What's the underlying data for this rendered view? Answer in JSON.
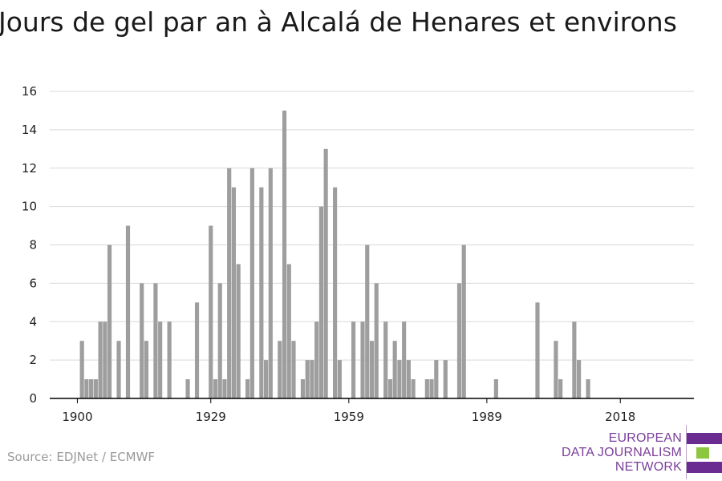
{
  "title": "Jours de gel par an à Alcalá de Henares et environs",
  "source": "Source: EDJNet / ECMWF",
  "logo": {
    "line1": "EUROPEAN",
    "line2": "DATA JOURNALISM",
    "line3": "NETWORK"
  },
  "colors": {
    "bar": "#9e9e9e",
    "grid": "#d9d9d9",
    "axis": "#000000",
    "logo_purple": "#6b2c91",
    "logo_green": "#8dc63f"
  },
  "chart_data": {
    "type": "bar",
    "x_tick_labels": [
      "1900",
      "1929",
      "1959",
      "1989",
      "2018"
    ],
    "x_ticks": [
      1900,
      1929,
      1959,
      1989,
      2018
    ],
    "y_ticks": [
      0,
      2,
      4,
      6,
      8,
      10,
      12,
      14,
      16
    ],
    "ylim": [
      0,
      16
    ],
    "xlim": [
      1894,
      2034
    ],
    "grid": true,
    "years": [
      1900,
      1901,
      1902,
      1903,
      1904,
      1905,
      1906,
      1907,
      1908,
      1909,
      1910,
      1911,
      1912,
      1913,
      1914,
      1915,
      1916,
      1917,
      1918,
      1919,
      1920,
      1921,
      1922,
      1923,
      1924,
      1925,
      1926,
      1927,
      1928,
      1929,
      1930,
      1931,
      1932,
      1933,
      1934,
      1935,
      1936,
      1937,
      1938,
      1939,
      1940,
      1941,
      1942,
      1943,
      1944,
      1945,
      1946,
      1947,
      1948,
      1949,
      1950,
      1951,
      1952,
      1953,
      1954,
      1955,
      1956,
      1957,
      1958,
      1959,
      1960,
      1961,
      1962,
      1963,
      1964,
      1965,
      1966,
      1967,
      1968,
      1969,
      1970,
      1971,
      1972,
      1973,
      1974,
      1975,
      1976,
      1977,
      1978,
      1979,
      1980,
      1981,
      1982,
      1983,
      1984,
      1985,
      1986,
      1987,
      1988,
      1989,
      1990,
      1991,
      1992,
      1993,
      1994,
      1995,
      1996,
      1997,
      1998,
      1999,
      2000,
      2001,
      2002,
      2003,
      2004,
      2005,
      2006,
      2007,
      2008,
      2009,
      2010,
      2011,
      2012,
      2013,
      2014,
      2015,
      2016,
      2017,
      2018,
      2019,
      2020
    ],
    "values": [
      0,
      3,
      1,
      1,
      1,
      4,
      4,
      8,
      0,
      3,
      0,
      9,
      0,
      0,
      6,
      3,
      0,
      6,
      4,
      0,
      4,
      0,
      0,
      0,
      1,
      0,
      5,
      0,
      0,
      9,
      1,
      6,
      1,
      12,
      11,
      7,
      0,
      1,
      12,
      0,
      11,
      2,
      12,
      0,
      3,
      15,
      7,
      3,
      0,
      1,
      2,
      2,
      4,
      10,
      13,
      0,
      11,
      2,
      0,
      0,
      4,
      0,
      4,
      8,
      3,
      6,
      0,
      4,
      1,
      3,
      2,
      4,
      2,
      1,
      0,
      0,
      1,
      1,
      2,
      0,
      2,
      0,
      0,
      6,
      8,
      0,
      0,
      0,
      0,
      0,
      0,
      1,
      0,
      0,
      0,
      0,
      0,
      0,
      0,
      0,
      5,
      0,
      0,
      0,
      3,
      1,
      0,
      0,
      4,
      2,
      0,
      1,
      0,
      0,
      0,
      0,
      0,
      0,
      0,
      0,
      0
    ]
  }
}
